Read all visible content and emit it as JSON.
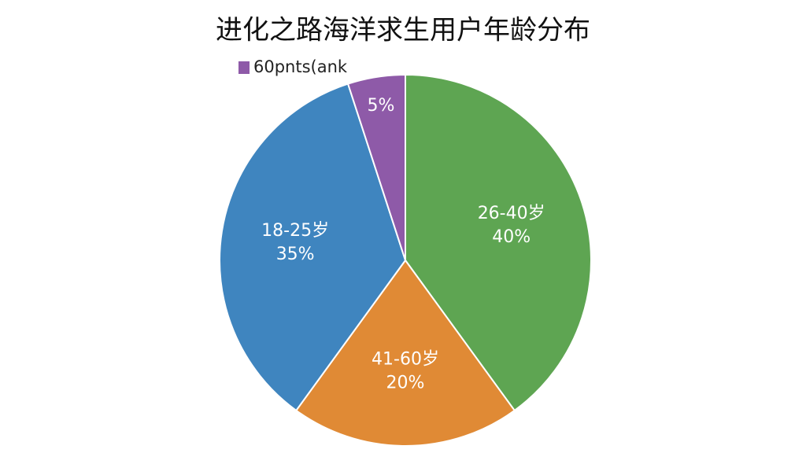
{
  "chart_data": {
    "type": "pie",
    "title": "进化之路海洋求生用户年龄分布",
    "categories": [
      "26-40岁",
      "41-60岁",
      "18-25岁",
      "60pnts(ank"
    ],
    "values": [
      40,
      20,
      35,
      5
    ],
    "value_labels": [
      "40%",
      "20%",
      "35%",
      "5%"
    ],
    "colors": [
      "#5ea552",
      "#e08a35",
      "#3f85bf",
      "#8e5aa8"
    ]
  }
}
